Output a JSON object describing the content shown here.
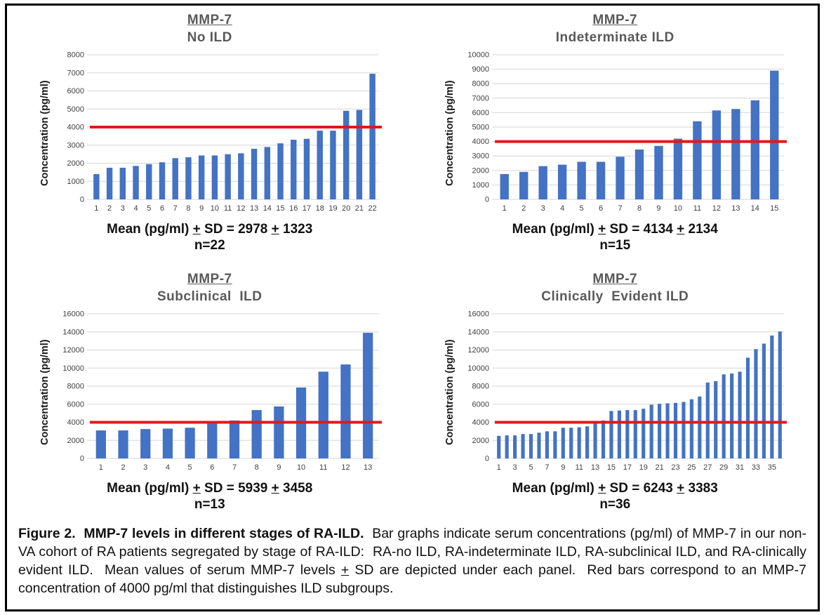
{
  "colors": {
    "bar": "#4472c4",
    "red_line": "#e0191e",
    "grid": "#d6d6d6",
    "title_gray": "#595959"
  },
  "caption": {
    "bold": "Figure 2.  MMP-7 levels in different stages of RA-ILD.",
    "body_1": "  Bar graphs indicate serum concentrations (pg/ml) of MMP-7 in our non-VA cohort of RA patients segregated by stage of RA-ILD:  RA-no ILD, RA-indeterminate ILD, RA-subclinical ILD, and RA-clinically evident ILD.  Mean values of serum MMP-7 levels ",
    "plus": "+",
    "body_2": " SD are depicted under each panel.  Red bars correspond to an MMP-7 concentration of 4000 pg/ml that distinguishes ILD subgroups."
  },
  "chart_data": [
    {
      "type": "bar",
      "title": "MMP-7",
      "subtitle": "No ILD",
      "ylabel": "Concentration (pg/ml)",
      "categories": [
        "1",
        "2",
        "3",
        "4",
        "5",
        "6",
        "7",
        "8",
        "9",
        "10",
        "11",
        "12",
        "13",
        "14",
        "15",
        "16",
        "17",
        "18",
        "19",
        "20",
        "21",
        "22"
      ],
      "values": [
        1400,
        1750,
        1750,
        1850,
        1950,
        2050,
        2280,
        2330,
        2430,
        2430,
        2500,
        2550,
        2800,
        2900,
        3100,
        3300,
        3350,
        3800,
        3800,
        4900,
        4950,
        6950
      ],
      "ylim": [
        0,
        8000
      ],
      "ytick_step": 1000,
      "xtick_every": 1,
      "red_line_y": 4000,
      "bar_color": "#4472c4",
      "line_color": "#e0191e",
      "grid": true,
      "legend": false,
      "mean_parts": {
        "p1": "Mean (pg/ml)",
        "plus": "+",
        "p2": "SD =",
        "value": "2978",
        "sd": "1323"
      },
      "n_label": "n=22"
    },
    {
      "type": "bar",
      "title": "MMP-7",
      "subtitle": "Indeterminate ILD",
      "ylabel": "Concentration (pg/ml)",
      "categories": [
        "1",
        "2",
        "3",
        "4",
        "5",
        "6",
        "7",
        "8",
        "9",
        "10",
        "11",
        "12",
        "13",
        "14",
        "15"
      ],
      "values": [
        1750,
        1900,
        2300,
        2400,
        2600,
        2600,
        2950,
        3450,
        3700,
        4200,
        5400,
        6150,
        6250,
        6850,
        8900
      ],
      "ylim": [
        0,
        10000
      ],
      "ytick_step": 1000,
      "xtick_every": 1,
      "red_line_y": 4000,
      "bar_color": "#4472c4",
      "line_color": "#e0191e",
      "grid": true,
      "legend": false,
      "mean_parts": {
        "p1": "Mean (pg/ml)",
        "plus": "+",
        "p2": "SD =",
        "value": "4134",
        "sd": "2134"
      },
      "n_label": "n=15"
    },
    {
      "type": "bar",
      "title": "MMP-7",
      "subtitle": "Subclinical  ILD",
      "ylabel": "Concentration (pg/ml)",
      "categories": [
        "1",
        "2",
        "3",
        "4",
        "5",
        "6",
        "7",
        "8",
        "9",
        "10",
        "11",
        "12",
        "13"
      ],
      "values": [
        3100,
        3100,
        3250,
        3300,
        3400,
        3900,
        4200,
        5350,
        5750,
        7850,
        9600,
        10400,
        13900
      ],
      "ylim": [
        0,
        16000
      ],
      "ytick_step": 2000,
      "xtick_every": 1,
      "red_line_y": 4000,
      "bar_color": "#4472c4",
      "line_color": "#e0191e",
      "grid": true,
      "legend": false,
      "mean_parts": {
        "p1": "Mean (pg/ml)",
        "plus": "+",
        "p2": "SD =",
        "value": "5939",
        "sd": "3458"
      },
      "n_label": "n=13"
    },
    {
      "type": "bar",
      "title": "MMP-7",
      "subtitle": "Clinically  Evident ILD",
      "ylabel": "Concentration (pg/ml)",
      "categories": [
        "1",
        "2",
        "3",
        "4",
        "5",
        "6",
        "7",
        "8",
        "9",
        "10",
        "11",
        "12",
        "13",
        "14",
        "15",
        "16",
        "17",
        "18",
        "19",
        "20",
        "21",
        "22",
        "23",
        "24",
        "25",
        "26",
        "27",
        "28",
        "29",
        "30",
        "31",
        "32",
        "33",
        "34",
        "35",
        "36"
      ],
      "values": [
        2500,
        2550,
        2550,
        2700,
        2700,
        2850,
        3000,
        3000,
        3400,
        3400,
        3450,
        3550,
        4100,
        4200,
        5250,
        5300,
        5350,
        5350,
        5500,
        5950,
        6050,
        6100,
        6150,
        6250,
        6550,
        6850,
        8400,
        8550,
        9300,
        9400,
        9600,
        11150,
        12100,
        12700,
        13600,
        14050
      ],
      "ylim": [
        0,
        16000
      ],
      "ytick_step": 2000,
      "xtick_every": 2,
      "red_line_y": 4000,
      "bar_color": "#4472c4",
      "line_color": "#e0191e",
      "grid": true,
      "legend": false,
      "mean_parts": {
        "p1": "Mean (pg/ml)",
        "plus": "+",
        "p2": "SD =",
        "value": "6243",
        "sd": "3383"
      },
      "n_label": "n=36"
    }
  ]
}
